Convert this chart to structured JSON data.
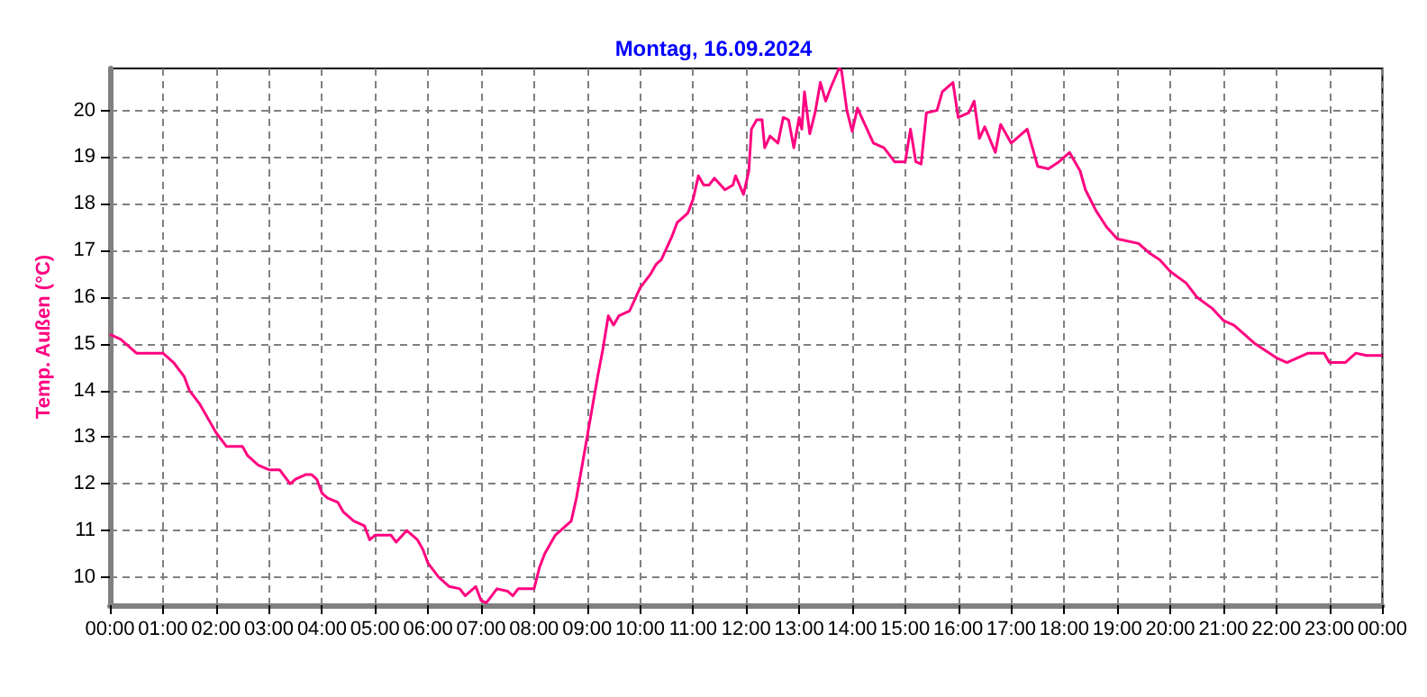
{
  "chart_data": {
    "type": "line",
    "title": "Montag, 16.09.2024",
    "ylabel": "Temp. Außen (°C)",
    "grid": true,
    "marker": "none",
    "line_style": "solid",
    "xlim": [
      0,
      24
    ],
    "xticks": [
      {
        "value": 0,
        "label": "00:00"
      },
      {
        "value": 1,
        "label": "01:00"
      },
      {
        "value": 2,
        "label": "02:00"
      },
      {
        "value": 3,
        "label": "03:00"
      },
      {
        "value": 4,
        "label": "04:00"
      },
      {
        "value": 5,
        "label": "05:00"
      },
      {
        "value": 6,
        "label": "06:00"
      },
      {
        "value": 7,
        "label": "07:00"
      },
      {
        "value": 8,
        "label": "08:00"
      },
      {
        "value": 9,
        "label": "09:00"
      },
      {
        "value": 10,
        "label": "10:00"
      },
      {
        "value": 11,
        "label": "11:00"
      },
      {
        "value": 12,
        "label": "12:00"
      },
      {
        "value": 13,
        "label": "13:00"
      },
      {
        "value": 14,
        "label": "14:00"
      },
      {
        "value": 15,
        "label": "15:00"
      },
      {
        "value": 16,
        "label": "16:00"
      },
      {
        "value": 17,
        "label": "17:00"
      },
      {
        "value": 18,
        "label": "18:00"
      },
      {
        "value": 19,
        "label": "19:00"
      },
      {
        "value": 20,
        "label": "20:00"
      },
      {
        "value": 21,
        "label": "21:00"
      },
      {
        "value": 22,
        "label": "22:00"
      },
      {
        "value": 23,
        "label": "23:00"
      },
      {
        "value": 24,
        "label": "00:00"
      }
    ],
    "ylim": [
      9.4,
      20.9
    ],
    "yticks": [
      10,
      11,
      12,
      13,
      14,
      15,
      16,
      17,
      18,
      19,
      20
    ],
    "series": [
      {
        "color": "#ff0080",
        "x": [
          0,
          0.2,
          0.4,
          0.5,
          1.0,
          1.2,
          1.4,
          1.5,
          1.7,
          1.9,
          2.0,
          2.2,
          2.5,
          2.6,
          2.8,
          3.0,
          3.2,
          3.4,
          3.5,
          3.7,
          3.8,
          3.9,
          4.0,
          4.1,
          4.3,
          4.4,
          4.6,
          4.8,
          4.9,
          5.0,
          5.3,
          5.4,
          5.6,
          5.8,
          5.9,
          6.0,
          6.2,
          6.4,
          6.6,
          6.7,
          6.9,
          7.0,
          7.1,
          7.3,
          7.5,
          7.6,
          7.7,
          8.0,
          8.1,
          8.2,
          8.4,
          8.6,
          8.7,
          8.8,
          9.0,
          9.2,
          9.3,
          9.4,
          9.5,
          9.6,
          9.8,
          10.0,
          10.2,
          10.3,
          10.4,
          10.6,
          10.7,
          10.9,
          11.0,
          11.1,
          11.2,
          11.3,
          11.4,
          11.6,
          11.75,
          11.8,
          11.95,
          12.05,
          12.1,
          12.2,
          12.3,
          12.35,
          12.45,
          12.6,
          12.7,
          12.8,
          12.9,
          13.0,
          13.05,
          13.1,
          13.2,
          13.3,
          13.4,
          13.5,
          13.6,
          13.75,
          13.8,
          13.9,
          14.0,
          14.1,
          14.2,
          14.4,
          14.6,
          14.8,
          15.0,
          15.1,
          15.2,
          15.3,
          15.4,
          15.6,
          15.7,
          15.9,
          16.0,
          16.2,
          16.3,
          16.4,
          16.5,
          16.7,
          16.8,
          17.0,
          17.2,
          17.3,
          17.4,
          17.5,
          17.7,
          17.9,
          18.1,
          18.3,
          18.4,
          18.6,
          18.8,
          19.0,
          19.4,
          19.6,
          19.8,
          20.0,
          20.3,
          20.5,
          20.8,
          21.0,
          21.2,
          21.4,
          21.6,
          21.8,
          22.0,
          22.2,
          22.4,
          22.6,
          22.9,
          23.0,
          23.3,
          23.5,
          23.7,
          24.0
        ],
        "values": [
          15.2,
          15.1,
          14.9,
          14.8,
          14.8,
          14.6,
          14.3,
          14.0,
          13.7,
          13.3,
          13.1,
          12.8,
          12.8,
          12.6,
          12.4,
          12.3,
          12.3,
          12.0,
          12.1,
          12.2,
          12.2,
          12.1,
          11.8,
          11.7,
          11.6,
          11.4,
          11.2,
          11.1,
          10.8,
          10.9,
          10.9,
          10.75,
          11.0,
          10.8,
          10.6,
          10.3,
          10.0,
          9.8,
          9.75,
          9.6,
          9.8,
          9.5,
          9.45,
          9.75,
          9.7,
          9.6,
          9.75,
          9.75,
          10.2,
          10.5,
          10.9,
          11.1,
          11.2,
          11.7,
          13.0,
          14.3,
          14.9,
          15.6,
          15.4,
          15.6,
          15.7,
          16.2,
          16.5,
          16.7,
          16.8,
          17.3,
          17.6,
          17.8,
          18.1,
          18.6,
          18.4,
          18.4,
          18.55,
          18.3,
          18.4,
          18.6,
          18.2,
          18.7,
          19.6,
          19.8,
          19.8,
          19.2,
          19.45,
          19.3,
          19.85,
          19.8,
          19.2,
          19.85,
          19.6,
          20.4,
          19.5,
          19.95,
          20.6,
          20.2,
          20.5,
          20.9,
          20.85,
          20.0,
          19.55,
          20.05,
          19.8,
          19.3,
          19.2,
          18.9,
          18.9,
          19.6,
          18.9,
          18.85,
          19.95,
          20.0,
          20.4,
          20.6,
          19.85,
          19.95,
          20.2,
          19.4,
          19.65,
          19.1,
          19.7,
          19.3,
          19.5,
          19.6,
          19.2,
          18.8,
          18.75,
          18.9,
          19.1,
          18.7,
          18.3,
          17.85,
          17.5,
          17.25,
          17.15,
          16.95,
          16.8,
          16.55,
          16.3,
          16.0,
          15.75,
          15.5,
          15.4,
          15.2,
          15.0,
          14.85,
          14.7,
          14.6,
          14.7,
          14.8,
          14.8,
          14.6,
          14.6,
          14.8,
          14.75,
          14.75
        ]
      }
    ]
  }
}
